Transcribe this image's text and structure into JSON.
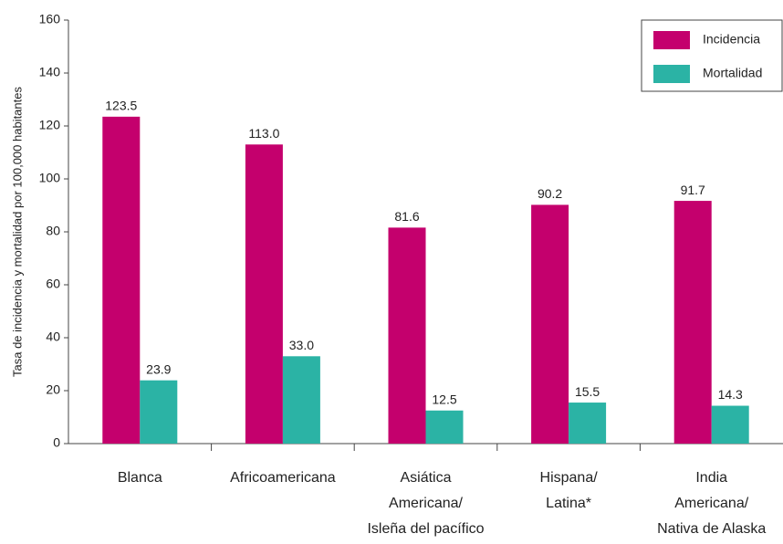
{
  "chart_data": {
    "type": "bar",
    "y_label": "Tasa de incidencia y mortalidad por 100,000 habitantes",
    "categories": [
      [
        "Blanca"
      ],
      [
        "Africoamericana"
      ],
      [
        "Asiática",
        "Americana/",
        "Isleña del pacífico"
      ],
      [
        "Hispana/",
        "Latina*"
      ],
      [
        "India",
        "Americana/",
        "Nativa de Alaska"
      ]
    ],
    "series": [
      {
        "name": "Incidencia",
        "color": "#c4006d",
        "values": [
          123.5,
          113.0,
          81.6,
          90.2,
          91.7
        ],
        "value_labels": [
          "123.5",
          "113.0",
          "81.6",
          "90.2",
          "91.7"
        ]
      },
      {
        "name": "Mortalidad",
        "color": "#2bb3a5",
        "values": [
          23.9,
          33.0,
          12.5,
          15.5,
          14.3
        ],
        "value_labels": [
          "23.9",
          "33.0",
          "12.5",
          "15.5",
          "14.3"
        ]
      }
    ],
    "ylim": [
      0,
      160
    ],
    "yticks": [
      0,
      20,
      40,
      60,
      80,
      100,
      120,
      140,
      160
    ],
    "legend": "top-right"
  }
}
